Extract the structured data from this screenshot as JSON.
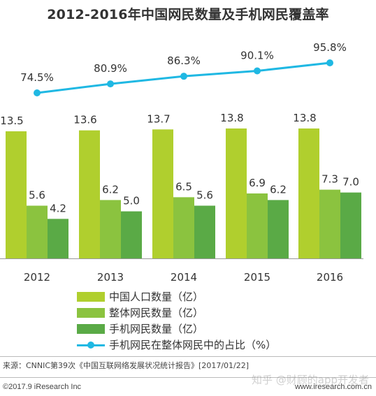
{
  "title": "2012-2016年中国网民数量及手机网民覆盖率",
  "chart_data": {
    "type": "bar",
    "categories": [
      "2012",
      "2013",
      "2014",
      "2015",
      "2016"
    ],
    "series": [
      {
        "name": "中国人口数量（亿）",
        "kind": "bar",
        "color": "#b0cf2e",
        "values": [
          13.5,
          13.6,
          13.7,
          13.8,
          13.8
        ],
        "labels": [
          "13.5",
          "13.6",
          "13.7",
          "13.8",
          "13.8"
        ]
      },
      {
        "name": "整体网民数量（亿）",
        "kind": "bar",
        "color": "#8bc33f",
        "values": [
          5.6,
          6.2,
          6.5,
          6.9,
          7.3
        ],
        "labels": [
          "5.6",
          "6.2",
          "6.5",
          "6.9",
          "7.3"
        ]
      },
      {
        "name": "手机网民数量（亿）",
        "kind": "bar",
        "color": "#5aaa46",
        "values": [
          4.2,
          5.0,
          5.6,
          6.2,
          7.0
        ],
        "labels": [
          "4.2",
          "5.0",
          "5.6",
          "6.2",
          "7.0"
        ]
      },
      {
        "name": "手机网民在整体网民中的占比（%）",
        "kind": "line",
        "color": "#1fb8e3",
        "values": [
          74.5,
          80.9,
          86.3,
          90.1,
          95.8
        ],
        "labels": [
          "74.5%",
          "80.9%",
          "86.3%",
          "90.1%",
          "95.8%"
        ]
      }
    ],
    "ylim": [
      0,
      15
    ],
    "y2lim": [
      0,
      100
    ],
    "grid": false,
    "legend": "bottom"
  },
  "footer": {
    "source": "来源：CNNIC第39次《中国互联网络发展状况统计报告》[2017/01/22]",
    "copyright": "©2017.9 iResearch Inc",
    "website": "www.iresearch.com.cn",
    "watermark": "知乎 @财顾的app开发者"
  }
}
